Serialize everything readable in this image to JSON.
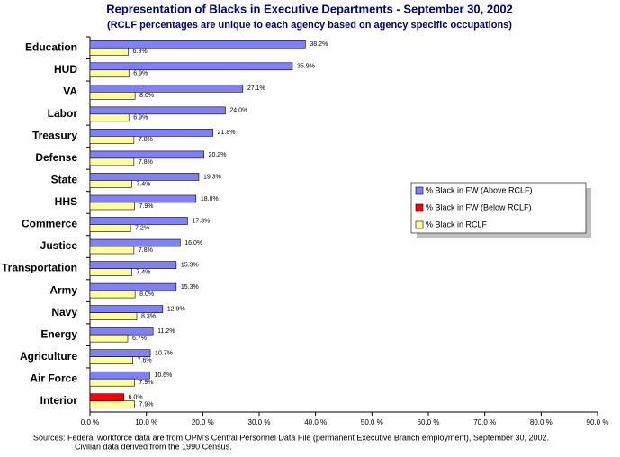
{
  "chart_data": {
    "type": "bar",
    "orientation": "horizontal",
    "title": "Representation of Blacks in Executive Departments - September 30, 2002",
    "subtitle": "(RCLF percentages are unique to each agency based on agency specific occupations)",
    "categories": [
      "Education",
      "HUD",
      "VA",
      "Labor",
      "Treasury",
      "Defense",
      "State",
      "HHS",
      "Commerce",
      "Justice",
      "Transportation",
      "Army",
      "Navy",
      "Energy",
      "Agriculture",
      "Air Force",
      "Interior"
    ],
    "series": [
      {
        "name": "% Black in FW (Above RCLF)",
        "color": "#8080ff",
        "values": [
          38.2,
          35.9,
          27.1,
          24.0,
          21.8,
          20.2,
          19.3,
          18.8,
          17.3,
          16.0,
          15.3,
          15.3,
          12.9,
          11.2,
          10.7,
          10.6,
          null
        ],
        "value_labels": [
          "38.2%",
          "35.9%",
          "27.1%",
          "24.0%",
          "21.8%",
          "20.2%",
          "19.3%",
          "18.8%",
          "17.3%",
          "16.0%",
          "15.3%",
          "15.3%",
          "12.9%",
          "11.2%",
          "10.7%",
          "10.6%",
          null
        ]
      },
      {
        "name": "% Black in FW  (Below RCLF)",
        "color": "#ff0000",
        "values": [
          null,
          null,
          null,
          null,
          null,
          null,
          null,
          null,
          null,
          null,
          null,
          null,
          null,
          null,
          null,
          null,
          6.0
        ],
        "value_labels": [
          null,
          null,
          null,
          null,
          null,
          null,
          null,
          null,
          null,
          null,
          null,
          null,
          null,
          null,
          null,
          null,
          "6.0%"
        ]
      },
      {
        "name": "% Black in RCLF",
        "color": "#ffff99",
        "values": [
          6.8,
          6.9,
          8.0,
          6.9,
          7.8,
          7.8,
          7.4,
          7.9,
          7.2,
          7.8,
          7.4,
          8.0,
          8.3,
          6.7,
          7.6,
          7.9,
          7.9
        ],
        "value_labels": [
          "6.8%",
          "6.9%",
          "8.0%",
          "6.9%",
          "7.8%",
          "7.8%",
          "7.4%",
          "7.9%",
          "7.2%",
          "7.8%",
          "7.4%",
          "8.0%",
          "8.3%",
          "6.7%",
          "7.6%",
          "7.9%",
          "7.9%"
        ]
      }
    ],
    "xlim": [
      0,
      90
    ],
    "xticks": [
      {
        "value": 0,
        "label": "0.0 %"
      },
      {
        "value": 10,
        "label": "10.0 %"
      },
      {
        "value": 20,
        "label": "20.0 %"
      },
      {
        "value": 30,
        "label": "30.0 %"
      },
      {
        "value": 40,
        "label": "40.0 %"
      },
      {
        "value": 50,
        "label": "50.0 %"
      },
      {
        "value": 60,
        "label": "60.0 %"
      },
      {
        "value": 70,
        "label": "70.0 %"
      },
      {
        "value": 80,
        "label": "80.0 %"
      },
      {
        "value": 90,
        "label": "90.0 %"
      }
    ],
    "grid": false,
    "legend": "right",
    "notes": [
      "Sources: Federal workforce data are from OPM's Central Personnel Data File (permanent Executive Branch employment), September 30, 2002.",
      "Civilian data derived from the 1990 Census."
    ]
  }
}
